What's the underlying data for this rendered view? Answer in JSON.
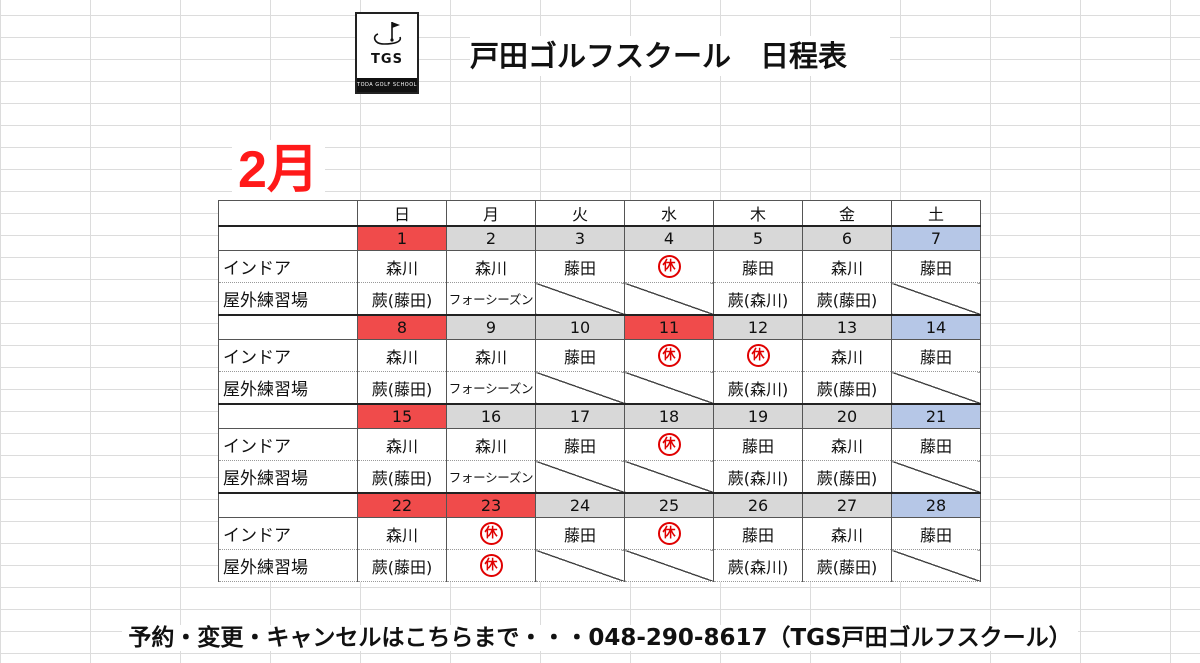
{
  "logo": {
    "text": "TGS",
    "subtext": "TODA GOLF SCHOOL"
  },
  "title": "戸田ゴルフスクール　日程表",
  "month": "2月",
  "weekdays": [
    "日",
    "月",
    "火",
    "水",
    "木",
    "金",
    "土"
  ],
  "row_labels": {
    "indoor": "インドア",
    "outdoor": "屋外練習場"
  },
  "off_mark": "休",
  "colors": {
    "sunday": "#f04b4b",
    "weekday": "#d8d8d8",
    "saturday": "#b6c7e7",
    "closed_day": "#f04b4b",
    "off_mark": "#e00000",
    "month": "#ff1a1a"
  },
  "weeks": [
    {
      "dates": [
        {
          "d": "1",
          "type": "sun"
        },
        {
          "d": "2",
          "type": "gray"
        },
        {
          "d": "3",
          "type": "gray"
        },
        {
          "d": "4",
          "type": "gray"
        },
        {
          "d": "5",
          "type": "gray"
        },
        {
          "d": "6",
          "type": "gray"
        },
        {
          "d": "7",
          "type": "sat"
        }
      ],
      "indoor": [
        "森川",
        "森川",
        "藤田",
        "休",
        "藤田",
        "森川",
        "藤田"
      ],
      "outdoor": [
        "蕨(藤田)",
        "フォーシーズン",
        "/",
        "/",
        "蕨(森川)",
        "蕨(藤田)",
        "/"
      ]
    },
    {
      "dates": [
        {
          "d": "8",
          "type": "sun"
        },
        {
          "d": "9",
          "type": "gray"
        },
        {
          "d": "10",
          "type": "gray"
        },
        {
          "d": "11",
          "type": "off"
        },
        {
          "d": "12",
          "type": "gray"
        },
        {
          "d": "13",
          "type": "gray"
        },
        {
          "d": "14",
          "type": "sat"
        }
      ],
      "indoor": [
        "森川",
        "森川",
        "藤田",
        "休",
        "休",
        "森川",
        "藤田"
      ],
      "outdoor": [
        "蕨(藤田)",
        "フォーシーズン",
        "/",
        "/",
        "蕨(森川)",
        "蕨(藤田)",
        "/"
      ]
    },
    {
      "dates": [
        {
          "d": "15",
          "type": "sun"
        },
        {
          "d": "16",
          "type": "gray"
        },
        {
          "d": "17",
          "type": "gray"
        },
        {
          "d": "18",
          "type": "gray"
        },
        {
          "d": "19",
          "type": "gray"
        },
        {
          "d": "20",
          "type": "gray"
        },
        {
          "d": "21",
          "type": "sat"
        }
      ],
      "indoor": [
        "森川",
        "森川",
        "藤田",
        "休",
        "藤田",
        "森川",
        "藤田"
      ],
      "outdoor": [
        "蕨(藤田)",
        "フォーシーズン",
        "/",
        "/",
        "蕨(森川)",
        "蕨(藤田)",
        "/"
      ]
    },
    {
      "dates": [
        {
          "d": "22",
          "type": "sun"
        },
        {
          "d": "23",
          "type": "off"
        },
        {
          "d": "24",
          "type": "gray"
        },
        {
          "d": "25",
          "type": "gray"
        },
        {
          "d": "26",
          "type": "gray"
        },
        {
          "d": "27",
          "type": "gray"
        },
        {
          "d": "28",
          "type": "sat"
        }
      ],
      "indoor": [
        "森川",
        "休",
        "藤田",
        "休",
        "藤田",
        "森川",
        "藤田"
      ],
      "outdoor": [
        "蕨(藤田)",
        "休",
        "/",
        "/",
        "蕨(森川)",
        "蕨(藤田)",
        "/"
      ]
    }
  ],
  "footer": "予約・変更・キャンセルはこちらまで・・・048-290-8617（TGS戸田ゴルフスクール）"
}
